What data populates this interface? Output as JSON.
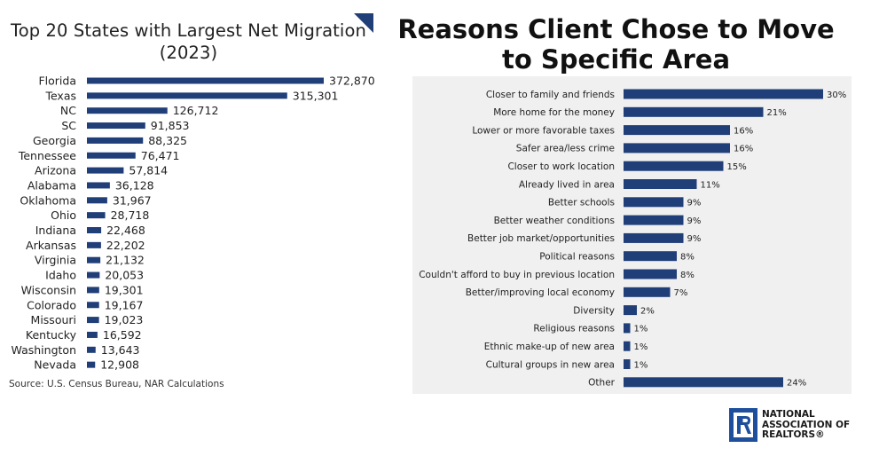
{
  "left_chart": {
    "title": "Top 20 States with Largest Net Migration (2023)",
    "source": "Source: U.S. Census Bureau, NAR Calculations"
  },
  "right_chart": {
    "title": "Reasons Client Chose to Move to Specific Area"
  },
  "logo": {
    "line1": "NATIONAL",
    "line2": "ASSOCIATION OF",
    "line3": "REALTORS®",
    "icon": "realtor-r-logo-icon"
  },
  "colors": {
    "bar": "#203e78",
    "panel_background": "#f0f0f0",
    "corner_mark": "#203e78"
  },
  "chart_data": [
    {
      "type": "bar",
      "orientation": "horizontal",
      "title": "Top 20 States with Largest Net Migration (2023)",
      "categories": [
        "Florida",
        "Texas",
        "NC",
        "SC",
        "Georgia",
        "Tennessee",
        "Arizona",
        "Alabama",
        "Oklahoma",
        "Ohio",
        "Indiana",
        "Arkansas",
        "Virginia",
        "Idaho",
        "Wisconsin",
        "Colorado",
        "Missouri",
        "Kentucky",
        "Washington",
        "Nevada"
      ],
      "values": [
        372870,
        315301,
        126712,
        91853,
        88325,
        76471,
        57814,
        36128,
        31967,
        28718,
        22468,
        22202,
        21132,
        20053,
        19301,
        19167,
        19023,
        16592,
        13643,
        12908
      ],
      "data_labels": [
        "372,870",
        "315,301",
        "126,712",
        "91,853",
        "88,325",
        "76,471",
        "57,814",
        "36,128",
        "31,967",
        "28,718",
        "22,468",
        "22,202",
        "21,132",
        "20,053",
        "19,301",
        "19,167",
        "19,023",
        "16,592",
        "13,643",
        "12,908"
      ],
      "xlim": [
        0,
        372870
      ],
      "grid": false,
      "legend": "none"
    },
    {
      "type": "bar",
      "orientation": "horizontal",
      "title": "Reasons Client Chose to Move to Specific Area",
      "categories": [
        "Closer to family and friends",
        "More home for the money",
        "Lower or more favorable taxes",
        "Safer area/less crime",
        "Closer to work location",
        "Already lived in area",
        "Better schools",
        "Better weather conditions",
        "Better job market/opportunities",
        "Political reasons",
        "Couldn't afford to buy in previous location",
        "Better/improving local economy",
        "Diversity",
        "Religious reasons",
        "Ethnic make-up of new area",
        "Cultural groups in new area",
        "Other"
      ],
      "values": [
        30,
        21,
        16,
        16,
        15,
        11,
        9,
        9,
        9,
        8,
        8,
        7,
        2,
        1,
        1,
        1,
        24
      ],
      "data_labels": [
        "30%",
        "21%",
        "16%",
        "16%",
        "15%",
        "11%",
        "9%",
        "9%",
        "9%",
        "8%",
        "8%",
        "7%",
        "2%",
        "1%",
        "1%",
        "1%",
        "24%"
      ],
      "xlim": [
        0,
        30
      ],
      "unit": "%",
      "grid": false,
      "legend": "none"
    }
  ]
}
